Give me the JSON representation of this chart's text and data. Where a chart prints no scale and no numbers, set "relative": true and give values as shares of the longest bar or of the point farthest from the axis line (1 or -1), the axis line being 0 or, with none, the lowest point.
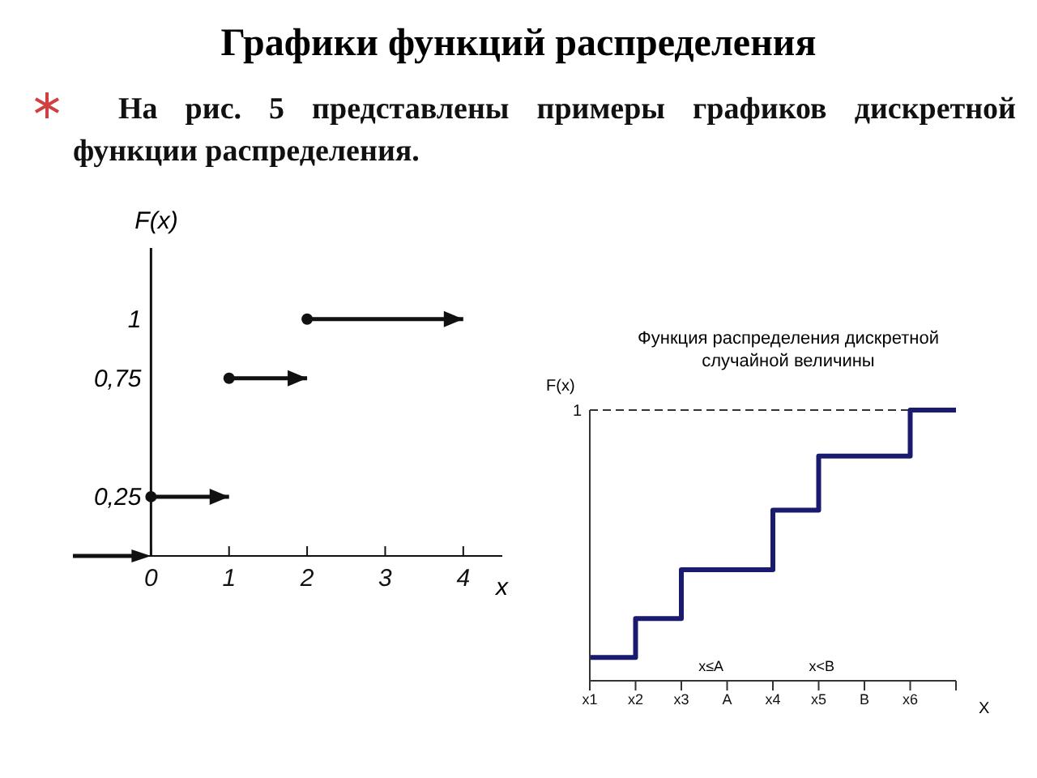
{
  "chart_data": [
    {
      "type": "line",
      "title": "Графики функций распределения",
      "subtitle": "На рис. 5 представлены примеры графиков дискретной функции распределения.",
      "xlabel": "x",
      "ylabel": "F(x)",
      "xlim": [
        -1,
        4.5
      ],
      "xticks": [
        0,
        1,
        2,
        3,
        4
      ],
      "ylim": [
        0,
        1.3
      ],
      "yticks": [
        {
          "value": 0.25,
          "label": "0,25"
        },
        {
          "value": 0.75,
          "label": "0,75"
        },
        1
      ],
      "grid": false,
      "legend": false,
      "series": [
        {
          "color": "#111111",
          "marker": "circle",
          "x": [
            0,
            1
          ],
          "values": [
            0.25,
            0.25
          ]
        },
        {
          "color": "#111111",
          "marker": "circle",
          "x": [
            1,
            2
          ],
          "values": [
            0.75,
            0.75
          ]
        },
        {
          "color": "#111111",
          "marker": "circle",
          "x": [
            2,
            4
          ],
          "values": [
            1,
            1
          ]
        }
      ]
    },
    {
      "type": "step",
      "title": "Функция распределения дискретной случайной величины",
      "xlabel": "X",
      "ylabel": "F(x)",
      "relative": true,
      "grid": false,
      "legend": false,
      "categories": [
        "x1",
        "x2",
        "x3",
        "A",
        "x4",
        "x5",
        "B",
        "x6",
        null
      ],
      "series": [
        {
          "color": "#1a1a6e",
          "values": [
            0.086,
            0.23,
            0.41,
            0.41,
            0.63,
            0.83,
            0.83,
            1,
            1
          ]
        }
      ],
      "ref_lines": [
        {
          "axis": "y",
          "value": 1,
          "label": "1",
          "line_style": "dashed",
          "color": "#333333"
        }
      ],
      "annotations": [
        "x≤A",
        "x<B"
      ]
    }
  ]
}
